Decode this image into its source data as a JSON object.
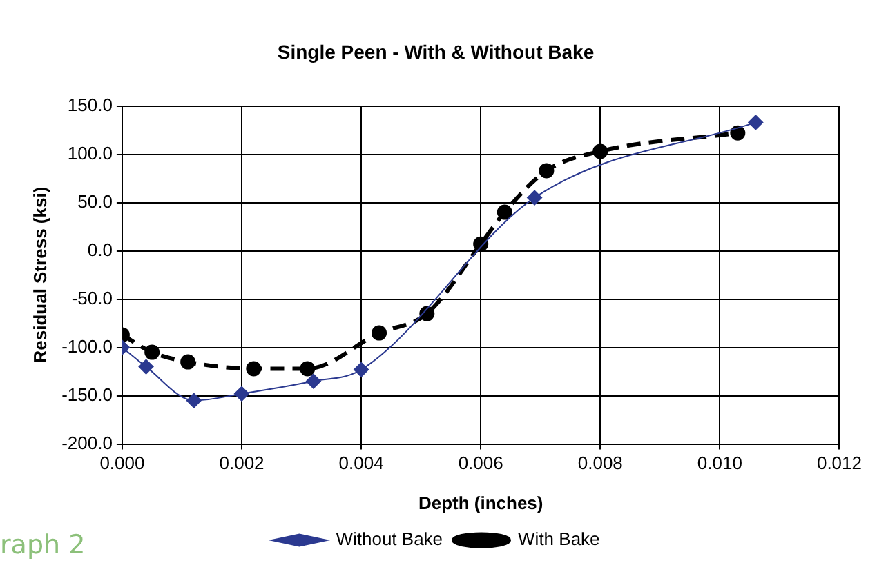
{
  "chart_data": {
    "type": "line",
    "title": "Single Peen - With & Without Bake",
    "xlabel": "Depth (inches)",
    "ylabel": "Residual Stress (ksi)",
    "xlim": [
      0,
      0.012
    ],
    "xticks": [
      {
        "value": 0,
        "label": "0.000"
      },
      {
        "value": 0.002,
        "label": "0.002"
      },
      {
        "value": 0.004,
        "label": "0.004"
      },
      {
        "value": 0.006,
        "label": "0.006"
      },
      {
        "value": 0.008,
        "label": "0.008"
      },
      {
        "value": 0.01,
        "label": "0.010"
      },
      {
        "value": 0.012,
        "label": "0.012"
      }
    ],
    "ylim": [
      -200,
      150
    ],
    "yticks": [
      {
        "value": -200,
        "label": "-200.0"
      },
      {
        "value": -150,
        "label": "-150.0"
      },
      {
        "value": -100,
        "label": "-100.0"
      },
      {
        "value": -50,
        "label": "-50.0"
      },
      {
        "value": 0,
        "label": "0.0"
      },
      {
        "value": 50,
        "label": "50.0"
      },
      {
        "value": 100,
        "label": "100.0"
      },
      {
        "value": 150,
        "label": "150.0"
      }
    ],
    "grid": true,
    "legend": "bottom",
    "annotations": [
      "raph 2"
    ],
    "series": [
      {
        "name": "Without Bake",
        "color": "#2b3990",
        "marker": "diamond",
        "line_style": "solid",
        "x": [
          0,
          0.0004,
          0.0012,
          0.002,
          0.0032,
          0.004,
          0.0069,
          0.0106
        ],
        "values": [
          -100,
          -120,
          -155,
          -148,
          -135,
          -123,
          55,
          133
        ]
      },
      {
        "name": "With Bake",
        "color": "#000000",
        "marker": "circle",
        "line_style": "dashed",
        "x": [
          0,
          0.0005,
          0.0011,
          0.0022,
          0.0031,
          0.0043,
          0.0051,
          0.006,
          0.0064,
          0.0071,
          0.008,
          0.0103
        ],
        "values": [
          -87,
          -105,
          -115,
          -122,
          -122,
          -85,
          -65,
          7,
          40,
          83,
          103,
          122
        ]
      }
    ]
  }
}
